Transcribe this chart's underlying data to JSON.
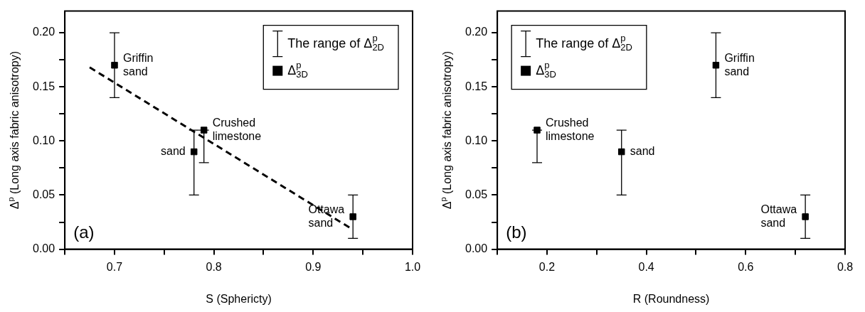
{
  "chart_data": [
    {
      "type": "scatter",
      "xlabel": "S (Sphericty)",
      "ylabel": "Δ$^{p}$ (Long axis fabric anisotropy)",
      "legend_title": "The range of Δ$^{p}$$_{2D}$",
      "legend": "top right",
      "marker": "square",
      "xlim": [
        0.65,
        1.0
      ],
      "xticks": [
        {
          "value": 0.65,
          "label": null
        },
        0.7,
        {
          "value": 0.75,
          "label": null
        },
        0.8,
        {
          "value": 0.85,
          "label": null
        },
        0.9,
        {
          "value": 0.95,
          "label": null
        },
        {
          "value": 1.0,
          "label": "1.0"
        }
      ],
      "ylim": [
        0,
        0.22
      ],
      "yticks": [
        {
          "value": 0,
          "label": "0.00"
        },
        {
          "value": 0.025,
          "label": null
        },
        {
          "value": 0.05,
          "label": "0.05"
        },
        {
          "value": 0.075,
          "label": null
        },
        {
          "value": 0.1,
          "label": "0.10"
        },
        {
          "value": 0.125,
          "label": null
        },
        {
          "value": 0.15,
          "label": "0.15"
        },
        {
          "value": 0.175,
          "label": null
        },
        {
          "value": 0.2,
          "label": "0.20"
        }
      ],
      "series": [
        {
          "name": "Δ$^{p}$$_{3D}$",
          "color": "#000000",
          "x": [
            0.7,
            0.78,
            0.79,
            0.94
          ],
          "values": [
            0.17,
            0.09,
            0.11,
            0.03
          ],
          "errors": [
            [
              0.14,
              0.2
            ],
            [
              0.05,
              0.11
            ],
            [
              0.08,
              0.11
            ],
            [
              0.01,
              0.05
            ]
          ]
        },
        {
          "type": "line",
          "color": "#000000",
          "line_style": "dashed",
          "marker": "none",
          "x": [
            0.675,
            0.94
          ],
          "values": [
            0.168,
            0.018
          ]
        }
      ],
      "annotations": [
        "(a)",
        {
          "text": "Griffin sand",
          "x": 0.7,
          "y": 0.17
        },
        {
          "text": "sand",
          "x": 0.78,
          "y": 0.09
        },
        {
          "text": "Crushed limestone",
          "x": 0.79,
          "y": 0.11
        },
        {
          "text": "Ottawa sand",
          "x": 0.94,
          "y": 0.03
        }
      ]
    },
    {
      "type": "scatter",
      "xlabel": "R (Roundness)",
      "ylabel": "Δ$^{p}$ (Long axis fabric anisotropy)",
      "legend_title": "The range of Δ$^{p}$$_{2D}$",
      "legend": "top left",
      "marker": "square",
      "xlim": [
        0.1,
        0.8
      ],
      "xticks": [
        {
          "value": 0.1,
          "label": null
        },
        0.2,
        {
          "value": 0.3,
          "label": null
        },
        0.4,
        {
          "value": 0.5,
          "label": null
        },
        0.6,
        {
          "value": 0.7,
          "label": null
        },
        0.8
      ],
      "ylim": [
        0,
        0.22
      ],
      "yticks": [
        {
          "value": 0,
          "label": "0.00"
        },
        {
          "value": 0.025,
          "label": null
        },
        {
          "value": 0.05,
          "label": "0.05"
        },
        {
          "value": 0.075,
          "label": null
        },
        {
          "value": 0.1,
          "label": "0.10"
        },
        {
          "value": 0.125,
          "label": null
        },
        {
          "value": 0.15,
          "label": "0.15"
        },
        {
          "value": 0.175,
          "label": null
        },
        {
          "value": 0.2,
          "label": "0.20"
        }
      ],
      "series": [
        {
          "name": "Δ$^{p}$$_{3D}$",
          "color": "#000000",
          "x": [
            0.18,
            0.35,
            0.54,
            0.72
          ],
          "values": [
            0.11,
            0.09,
            0.17,
            0.03
          ],
          "errors": [
            [
              0.08,
              0.11
            ],
            [
              0.05,
              0.11
            ],
            [
              0.14,
              0.2
            ],
            [
              0.01,
              0.05
            ]
          ]
        }
      ],
      "annotations": [
        "(b)",
        {
          "text": "Crushed limestone",
          "x": 0.18,
          "y": 0.11
        },
        {
          "text": "sand",
          "x": 0.35,
          "y": 0.09
        },
        {
          "text": "Griffin sand",
          "x": 0.54,
          "y": 0.17
        },
        {
          "text": "Ottawa sand",
          "x": 0.72,
          "y": 0.03
        }
      ]
    }
  ]
}
